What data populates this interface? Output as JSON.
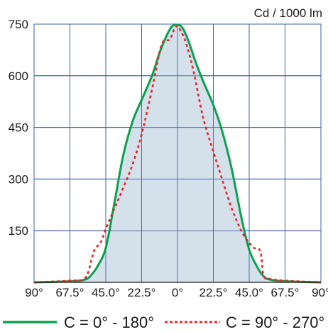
{
  "chart_data": {
    "type": "line",
    "unit_label": "Cd / 1000 lm",
    "x_tick_labels": [
      "90°",
      "67.5°",
      "45.0°",
      "22.5°",
      "0°",
      "22.5°",
      "45.0°",
      "67.5°",
      "90°"
    ],
    "y_ticks": [
      150,
      300,
      450,
      600,
      750
    ],
    "xlim": [
      -90,
      90
    ],
    "ylim": [
      0,
      750
    ],
    "grid": true,
    "legend_position": "bottom",
    "series": [
      {
        "name": "C = 0° - 180°",
        "color": "#0aa050",
        "style": "solid",
        "fill": "#d4e0ea",
        "x": [
          -90,
          -67.5,
          -58,
          -54,
          -50,
          -45,
          -40,
          -34,
          -28,
          -22.5,
          -16,
          -11,
          -7,
          -4,
          -2,
          0,
          2,
          4,
          7,
          11,
          16,
          22.5,
          28,
          34,
          40,
          45,
          50,
          54,
          58,
          67.5,
          90
        ],
        "values": [
          0,
          3,
          8,
          22,
          48,
          100,
          220,
          370,
          470,
          530,
          600,
          670,
          715,
          740,
          748,
          748,
          745,
          732,
          700,
          645,
          585,
          515,
          440,
          330,
          190,
          95,
          45,
          18,
          8,
          3,
          0
        ]
      },
      {
        "name": "C = 90° - 270°",
        "color": "#e8262b",
        "style": "dotted",
        "x": [
          -90,
          -67.5,
          -58,
          -54,
          -52,
          -48,
          -45,
          -40,
          -34,
          -28,
          -22.5,
          -16,
          -10,
          -5,
          -2,
          0,
          2,
          5,
          10,
          16,
          22.5,
          28,
          34,
          40,
          45,
          48,
          52,
          54,
          58,
          67.5,
          90
        ],
        "values": [
          0,
          5,
          12,
          65,
          95,
          118,
          155,
          210,
          275,
          345,
          430,
          560,
          690,
          705,
          735,
          745,
          730,
          700,
          615,
          480,
          380,
          300,
          215,
          150,
          115,
          100,
          90,
          20,
          10,
          5,
          0
        ]
      }
    ]
  }
}
